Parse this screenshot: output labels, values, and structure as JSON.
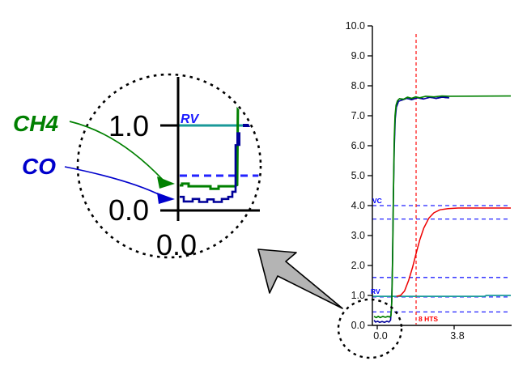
{
  "figure": {
    "background": "#ffffff",
    "labels": {
      "ch4": "CH4",
      "co": "CO"
    },
    "colors": {
      "ch4": "#008000",
      "co": "#000099",
      "hts": "#ee0000",
      "rv_line": "#1a9999",
      "guide_dashed": "#2222ff",
      "tiny_label_blue": "#0000ff",
      "tiny_label_red": "#ff0000",
      "axis": "#000000",
      "arrow_fill": "#b4b4b4",
      "magnifier_outline": "#000000"
    }
  },
  "chart_data": [
    {
      "id": "main",
      "type": "line",
      "title": "",
      "xlabel": "",
      "ylabel": "",
      "ylim": [
        0,
        10
      ],
      "xlim": [
        -0.24,
        6.6
      ],
      "grid": false,
      "legend_position": "none",
      "yticks": [
        {
          "v": 10,
          "label": "10.0"
        },
        {
          "v": 9,
          "label": "9.0"
        },
        {
          "v": 8,
          "label": "8.0"
        },
        {
          "v": 7,
          "label": "7.0"
        },
        {
          "v": 6,
          "label": "6.0"
        },
        {
          "v": 5,
          "label": "5.0"
        },
        {
          "v": 4,
          "label": "4.0"
        },
        {
          "v": 3,
          "label": "3.0"
        },
        {
          "v": 2,
          "label": "2.0"
        },
        {
          "v": 1,
          "label": "1.0"
        },
        {
          "v": 0,
          "label": "0.0"
        }
      ],
      "xticks": [
        {
          "v": 0,
          "label": "0.0"
        },
        {
          "v": 3.8,
          "label": "3.8"
        }
      ],
      "annotations": {
        "vc_label": "VC",
        "rv_label": "RV",
        "hts_label": "8 HTS",
        "hts_marker": {
          "x": 1.92,
          "y_top": 9.73,
          "y_bottom": 0.03
        },
        "guide_lines_y": [
          4.0,
          3.55,
          1.6,
          0.95,
          0.45
        ]
      },
      "series": [
        {
          "name": "RV",
          "color": "#1a9999",
          "width": 1.8,
          "style": "solid",
          "points": [
            [
              -0.24,
              0.97
            ],
            [
              5.3,
              0.97
            ],
            [
              5.4,
              1.0
            ],
            [
              6.6,
              1.0
            ]
          ]
        },
        {
          "name": "HTS",
          "color": "#ee0000",
          "width": 1.5,
          "style": "solid",
          "points": [
            [
              0.95,
              0.97
            ],
            [
              1.15,
              1.0
            ],
            [
              1.35,
              1.15
            ],
            [
              1.55,
              1.5
            ],
            [
              1.75,
              1.95
            ],
            [
              1.92,
              2.4
            ],
            [
              2.1,
              2.85
            ],
            [
              2.3,
              3.25
            ],
            [
              2.55,
              3.58
            ],
            [
              2.8,
              3.76
            ],
            [
              3.1,
              3.86
            ],
            [
              3.5,
              3.9
            ],
            [
              4.0,
              3.92
            ],
            [
              6.6,
              3.92
            ]
          ]
        },
        {
          "name": "CO",
          "color": "#000099",
          "width": 1.6,
          "style": "solid",
          "plateau_dash_from": 0.95,
          "points": [
            [
              -0.16,
              0.17
            ],
            [
              -0.08,
              0.11
            ],
            [
              0.02,
              0.14
            ],
            [
              0.12,
              0.1
            ],
            [
              0.24,
              0.13
            ],
            [
              0.36,
              0.1
            ],
            [
              0.48,
              0.14
            ],
            [
              0.58,
              0.11
            ],
            [
              0.66,
              0.18
            ],
            [
              0.71,
              0.7
            ],
            [
              0.75,
              2.0
            ],
            [
              0.79,
              4.0
            ],
            [
              0.84,
              5.9
            ],
            [
              0.89,
              6.9
            ],
            [
              0.95,
              7.3
            ],
            [
              1.05,
              7.48
            ],
            [
              1.2,
              7.52
            ],
            [
              1.45,
              7.58
            ],
            [
              1.7,
              7.54
            ],
            [
              2.0,
              7.6
            ],
            [
              2.3,
              7.56
            ],
            [
              2.6,
              7.62
            ],
            [
              2.9,
              7.58
            ],
            [
              3.2,
              7.62
            ],
            [
              3.55,
              7.6
            ]
          ]
        },
        {
          "name": "CH4",
          "color": "#008000",
          "width": 1.7,
          "style": "solid",
          "points": [
            [
              -0.16,
              0.3
            ],
            [
              -0.05,
              0.26
            ],
            [
              0.05,
              0.3
            ],
            [
              0.15,
              0.26
            ],
            [
              0.28,
              0.3
            ],
            [
              0.4,
              0.27
            ],
            [
              0.52,
              0.3
            ],
            [
              0.62,
              0.28
            ],
            [
              0.68,
              0.33
            ],
            [
              0.72,
              0.8
            ],
            [
              0.76,
              2.2
            ],
            [
              0.8,
              4.4
            ],
            [
              0.84,
              6.2
            ],
            [
              0.88,
              7.0
            ],
            [
              0.93,
              7.35
            ],
            [
              1.0,
              7.5
            ],
            [
              1.1,
              7.57
            ],
            [
              1.3,
              7.55
            ],
            [
              1.5,
              7.62
            ],
            [
              1.7,
              7.58
            ],
            [
              1.9,
              7.63
            ],
            [
              2.1,
              7.6
            ],
            [
              2.4,
              7.65
            ],
            [
              2.8,
              7.63
            ],
            [
              3.2,
              7.66
            ],
            [
              3.6,
              7.65
            ],
            [
              6.6,
              7.66
            ]
          ]
        }
      ]
    },
    {
      "id": "inset",
      "type": "line",
      "title": "",
      "xlabel": "",
      "ylabel": "",
      "ylim": [
        -0.1,
        1.55
      ],
      "xlim": [
        -0.2,
        1.05
      ],
      "grid": false,
      "yticks": [
        {
          "v": 1.0,
          "label": "1.0"
        },
        {
          "v": 0.0,
          "label": "0.0"
        }
      ],
      "xticks": [
        {
          "v": 0.0,
          "label": "0.0"
        }
      ],
      "annotations": {
        "rv_label": "RV",
        "guide_line_y": 0.41,
        "rv_level_y": 1.0
      },
      "series": [
        {
          "name": "guide",
          "color": "#2222ff",
          "width": 3,
          "style": "dashed",
          "points": [
            [
              0.02,
              0.41
            ],
            [
              1.03,
              0.41
            ]
          ]
        },
        {
          "name": "RV",
          "color": "#1a9999",
          "width": 3,
          "style": "solid",
          "points": [
            [
              0.0,
              1.0
            ],
            [
              1.06,
              1.0
            ]
          ]
        },
        {
          "name": "red-tip",
          "color": "#ee0000",
          "width": 2,
          "style": "solid",
          "points": [
            [
              0.96,
              1.04
            ],
            [
              1.05,
              1.0
            ]
          ]
        },
        {
          "name": "CH4",
          "color": "#008000",
          "width": 3,
          "style": "solid",
          "points": [
            [
              0.02,
              0.295
            ],
            [
              0.05,
              0.295
            ],
            [
              0.05,
              0.315
            ],
            [
              0.13,
              0.315
            ],
            [
              0.13,
              0.285
            ],
            [
              0.4,
              0.285
            ],
            [
              0.4,
              0.255
            ],
            [
              0.5,
              0.255
            ],
            [
              0.5,
              0.285
            ],
            [
              0.7,
              0.285
            ],
            [
              0.73,
              0.3
            ],
            [
              0.74,
              1.35
            ]
          ]
        },
        {
          "name": "CO",
          "color": "#000099",
          "width": 2.6,
          "style": "solid",
          "points": [
            [
              0.02,
              0.16
            ],
            [
              0.07,
              0.16
            ],
            [
              0.07,
              0.105
            ],
            [
              0.18,
              0.105
            ],
            [
              0.18,
              0.135
            ],
            [
              0.26,
              0.135
            ],
            [
              0.26,
              0.1
            ],
            [
              0.36,
              0.1
            ],
            [
              0.36,
              0.13
            ],
            [
              0.44,
              0.13
            ],
            [
              0.44,
              0.1
            ],
            [
              0.54,
              0.1
            ],
            [
              0.54,
              0.135
            ],
            [
              0.62,
              0.135
            ],
            [
              0.62,
              0.16
            ],
            [
              0.67,
              0.16
            ],
            [
              0.67,
              0.22
            ],
            [
              0.71,
              0.22
            ],
            [
              0.71,
              0.78
            ]
          ]
        },
        {
          "name": "CO-rise",
          "color": "#000099",
          "width": 5,
          "style": "solid",
          "points": [
            [
              0.745,
              0.76
            ],
            [
              0.745,
              0.92
            ]
          ]
        },
        {
          "name": "CO-top-dash",
          "color": "#000099",
          "width": 4,
          "style": "dashed",
          "points": [
            [
              0.8,
              1.0
            ],
            [
              0.98,
              1.0
            ]
          ]
        }
      ]
    }
  ]
}
